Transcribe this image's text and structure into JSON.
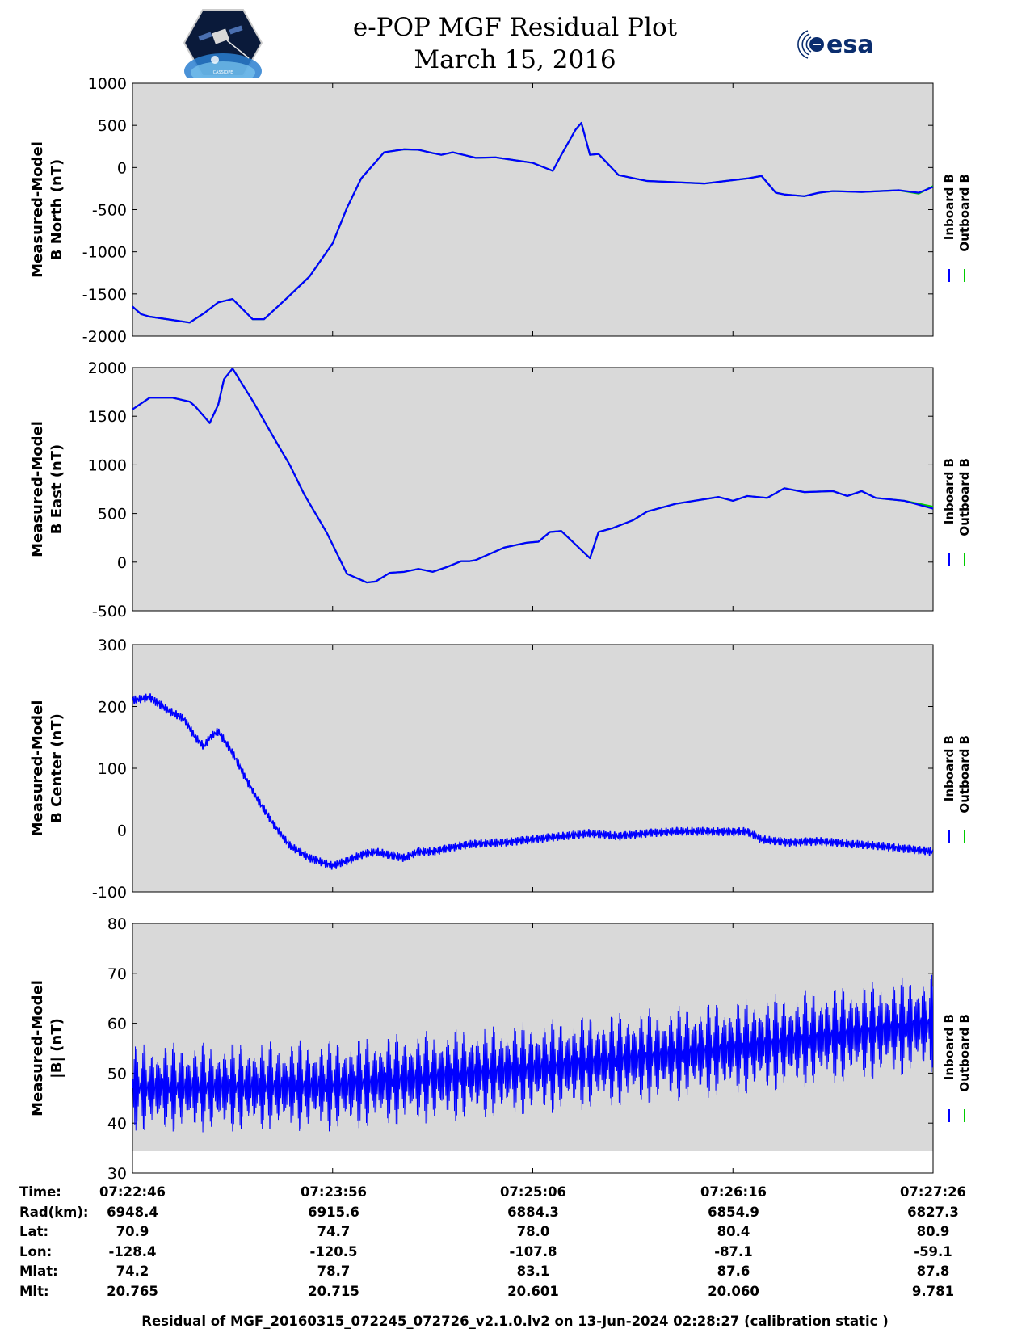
{
  "header": {
    "title": "e-POP MGF Residual Plot",
    "subtitle": "March 15, 2016",
    "left_logo": {
      "icon": "cassiope-satellite-logo",
      "text": "CASSIOPE"
    },
    "right_logo": {
      "icon": "esa-logo",
      "text": "esa"
    }
  },
  "colors": {
    "inboard": "#0000ff",
    "outboard": "#00cc00",
    "plot_background": "#d9d9d9"
  },
  "chart_data": [
    {
      "type": "line",
      "ylabel": [
        "Measured-Model",
        "B North (nT)"
      ],
      "ylim": [
        -2000,
        1000
      ],
      "yticks": [
        1000,
        500,
        0,
        -500,
        -1000,
        -1500,
        -2000
      ],
      "xlim": [
        0,
        280
      ],
      "xticks": [
        0,
        70,
        140,
        210,
        280
      ],
      "grid": false,
      "legend_position": "right-vertical",
      "series": [
        {
          "name": "Inboard B",
          "x": [
            0,
            3,
            6,
            12,
            20,
            25,
            30,
            35,
            42,
            46,
            54,
            62,
            70,
            75,
            80,
            88,
            95,
            100,
            105,
            108,
            112,
            120,
            127,
            140,
            147,
            150,
            155,
            157,
            160,
            163,
            170,
            180,
            200,
            215,
            220,
            225,
            228,
            235,
            240,
            245,
            255,
            268,
            275,
            280
          ],
          "values": [
            -1650,
            -1740,
            -1770,
            -1800,
            -1840,
            -1730,
            -1600,
            -1560,
            -1800,
            -1800,
            -1550,
            -1290,
            -900,
            -480,
            -130,
            180,
            215,
            210,
            170,
            150,
            180,
            115,
            120,
            55,
            -40,
            150,
            450,
            530,
            150,
            160,
            -90,
            -160,
            -190,
            -130,
            -100,
            -300,
            -320,
            -340,
            -300,
            -280,
            -290,
            -270,
            -300,
            -230
          ]
        },
        {
          "name": "Outboard B",
          "x": [
            0,
            3,
            6,
            12,
            20,
            25,
            30,
            35,
            42,
            46,
            54,
            62,
            70,
            75,
            80,
            88,
            95,
            100,
            105,
            108,
            112,
            120,
            127,
            140,
            147,
            150,
            155,
            157,
            160,
            163,
            170,
            180,
            200,
            215,
            220,
            225,
            228,
            235,
            240,
            245,
            255,
            268,
            275,
            280
          ],
          "values": [
            -1650,
            -1740,
            -1770,
            -1800,
            -1840,
            -1730,
            -1600,
            -1560,
            -1800,
            -1800,
            -1550,
            -1290,
            -900,
            -480,
            -130,
            180,
            215,
            210,
            170,
            150,
            180,
            115,
            120,
            55,
            -40,
            150,
            450,
            530,
            150,
            160,
            -90,
            -160,
            -190,
            -130,
            -100,
            -300,
            -320,
            -340,
            -300,
            -280,
            -290,
            -270,
            -310,
            -220
          ]
        }
      ],
      "legend": [
        "Inboard B",
        "Outboard B"
      ]
    },
    {
      "type": "line",
      "ylabel": [
        "Measured-Model",
        "B East (nT)"
      ],
      "ylim": [
        -500,
        2000
      ],
      "yticks": [
        2000,
        1500,
        1000,
        500,
        0,
        -500
      ],
      "xlim": [
        0,
        280
      ],
      "xticks": [
        0,
        70,
        140,
        210,
        280
      ],
      "grid": false,
      "legend_position": "right-vertical",
      "series": [
        {
          "name": "Inboard B",
          "x": [
            0,
            6,
            14,
            20,
            22,
            27,
            30,
            32,
            35,
            42,
            50,
            55,
            60,
            68,
            75,
            82,
            85,
            90,
            95,
            100,
            105,
            110,
            115,
            118,
            120,
            130,
            138,
            142,
            146,
            150,
            155,
            160,
            163,
            168,
            175,
            180,
            190,
            205,
            210,
            215,
            222,
            228,
            235,
            245,
            250,
            255,
            260,
            270,
            280
          ],
          "values": [
            1570,
            1690,
            1690,
            1650,
            1600,
            1430,
            1620,
            1880,
            1990,
            1660,
            1250,
            1000,
            700,
            300,
            -120,
            -210,
            -200,
            -110,
            -100,
            -70,
            -100,
            -50,
            10,
            10,
            20,
            150,
            200,
            210,
            310,
            320,
            180,
            40,
            310,
            350,
            430,
            520,
            600,
            670,
            630,
            680,
            660,
            760,
            720,
            730,
            680,
            730,
            660,
            630,
            550
          ]
        },
        {
          "name": "Outboard B",
          "x": [
            0,
            6,
            14,
            20,
            22,
            27,
            30,
            32,
            35,
            42,
            50,
            55,
            60,
            68,
            75,
            82,
            85,
            90,
            95,
            100,
            105,
            110,
            115,
            118,
            120,
            130,
            138,
            142,
            146,
            150,
            155,
            160,
            163,
            168,
            175,
            180,
            190,
            205,
            210,
            215,
            222,
            228,
            235,
            245,
            250,
            255,
            260,
            270,
            280
          ],
          "values": [
            1570,
            1690,
            1690,
            1650,
            1600,
            1430,
            1620,
            1880,
            1990,
            1660,
            1250,
            1000,
            700,
            300,
            -120,
            -210,
            -200,
            -110,
            -100,
            -70,
            -100,
            -50,
            10,
            10,
            20,
            150,
            200,
            210,
            310,
            320,
            180,
            40,
            310,
            350,
            430,
            520,
            600,
            670,
            630,
            680,
            660,
            760,
            720,
            730,
            680,
            730,
            660,
            630,
            570
          ]
        }
      ],
      "legend": [
        "Inboard B",
        "Outboard B"
      ]
    },
    {
      "type": "line",
      "ylabel": [
        "Measured-Model",
        "B Center (nT)"
      ],
      "ylim": [
        -100,
        300
      ],
      "yticks": [
        300,
        200,
        100,
        0,
        -100
      ],
      "xlim": [
        0,
        280
      ],
      "xticks": [
        0,
        70,
        140,
        210,
        280
      ],
      "grid": false,
      "legend_position": "right-vertical",
      "oscillation_amplitude_nT": 7,
      "series": [
        {
          "name": "Inboard B",
          "x": [
            0,
            6,
            12,
            18,
            22,
            25,
            27,
            30,
            35,
            40,
            45,
            50,
            55,
            62,
            70,
            75,
            80,
            85,
            90,
            95,
            100,
            105,
            110,
            115,
            120,
            130,
            140,
            150,
            160,
            170,
            180,
            190,
            200,
            210,
            215,
            220,
            230,
            240,
            250,
            260,
            270,
            280
          ],
          "values": [
            210,
            215,
            195,
            180,
            150,
            135,
            150,
            160,
            125,
            80,
            40,
            5,
            -25,
            -45,
            -58,
            -50,
            -40,
            -35,
            -40,
            -45,
            -35,
            -35,
            -30,
            -25,
            -22,
            -20,
            -15,
            -10,
            -5,
            -10,
            -5,
            -2,
            -2,
            -3,
            -2,
            -15,
            -20,
            -18,
            -22,
            -25,
            -30,
            -35
          ]
        }
      ],
      "legend": [
        "Inboard B",
        "Outboard B"
      ]
    },
    {
      "type": "line",
      "ylabel": [
        "Measured-Model",
        "|B| (nT)"
      ],
      "ylim": [
        30,
        80
      ],
      "yticks": [
        80,
        70,
        60,
        50,
        40,
        30
      ],
      "xlim": [
        0,
        280
      ],
      "xticks": [
        0,
        70,
        140,
        210,
        280
      ],
      "grid": false,
      "legend_position": "right-vertical",
      "trend_start_nT": 47,
      "trend_end_nT": 60,
      "oscillation_amplitude_start_nT": 9,
      "oscillation_amplitude_end_nT": 10,
      "series": [
        {
          "name": "Inboard B",
          "x": [
            0,
            70,
            140,
            210,
            280
          ],
          "values": [
            47,
            47.5,
            51,
            55,
            60
          ]
        }
      ],
      "legend": [
        "Inboard B",
        "Outboard B"
      ]
    }
  ],
  "info_table": {
    "labels": [
      "Time:",
      "Rad(km):",
      "Lat:",
      "Lon:",
      "Mlat:",
      "Mlt:"
    ],
    "columns": [
      [
        "07:22:46",
        "6948.4",
        "70.9",
        "-128.4",
        "74.2",
        "20.765"
      ],
      [
        "07:23:56",
        "6915.6",
        "74.7",
        "-120.5",
        "78.7",
        "20.715"
      ],
      [
        "07:25:06",
        "6884.3",
        "78.0",
        "-107.8",
        "83.1",
        "20.601"
      ],
      [
        "07:26:16",
        "6854.9",
        "80.4",
        "-87.1",
        "87.6",
        "20.060"
      ],
      [
        "07:27:26",
        "6827.3",
        "80.9",
        "-59.1",
        "87.8",
        "9.781"
      ]
    ]
  },
  "footer": "Residual of MGF_20160315_072245_072726_v2.1.0.lv2 on 13-Jun-2024 02:28:27 (calibration static )"
}
